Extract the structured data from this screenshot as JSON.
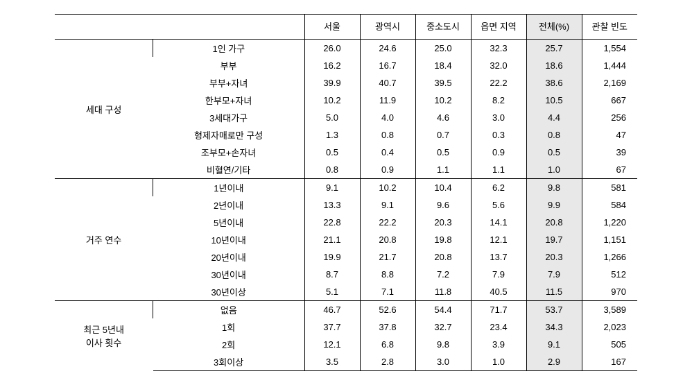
{
  "headers": {
    "blank": "",
    "seoul": "서울",
    "metro": "광역시",
    "smallcity": "중소도시",
    "rural": "읍면 지역",
    "total": "전체(%)",
    "freq": "관찰\n빈도"
  },
  "groups": [
    {
      "label": "세대 구성",
      "rows": [
        {
          "label": "1인 가구",
          "seoul": "26.0",
          "metro": "24.6",
          "smallcity": "25.0",
          "rural": "32.3",
          "total": "25.7",
          "freq": "1,554"
        },
        {
          "label": "부부",
          "seoul": "16.2",
          "metro": "16.7",
          "smallcity": "18.4",
          "rural": "32.0",
          "total": "18.6",
          "freq": "1,444"
        },
        {
          "label": "부부+자녀",
          "seoul": "39.9",
          "metro": "40.7",
          "smallcity": "39.5",
          "rural": "22.2",
          "total": "38.6",
          "freq": "2,169"
        },
        {
          "label": "한부모+자녀",
          "seoul": "10.2",
          "metro": "11.9",
          "smallcity": "10.2",
          "rural": "8.2",
          "total": "10.5",
          "freq": "667"
        },
        {
          "label": "3세대가구",
          "seoul": "5.0",
          "metro": "4.0",
          "smallcity": "4.6",
          "rural": "3.0",
          "total": "4.4",
          "freq": "256"
        },
        {
          "label": "형제자매로만 구성",
          "seoul": "1.3",
          "metro": "0.8",
          "smallcity": "0.7",
          "rural": "0.3",
          "total": "0.8",
          "freq": "47"
        },
        {
          "label": "조부모+손자녀",
          "seoul": "0.5",
          "metro": "0.4",
          "smallcity": "0.5",
          "rural": "0.9",
          "total": "0.5",
          "freq": "39"
        },
        {
          "label": "비혈연/기타",
          "seoul": "0.8",
          "metro": "0.9",
          "smallcity": "1.1",
          "rural": "1.1",
          "total": "1.0",
          "freq": "67"
        }
      ]
    },
    {
      "label": "거주 연수",
      "rows": [
        {
          "label": "1년이내",
          "seoul": "9.1",
          "metro": "10.2",
          "smallcity": "10.4",
          "rural": "6.2",
          "total": "9.8",
          "freq": "581"
        },
        {
          "label": "2년이내",
          "seoul": "13.3",
          "metro": "9.1",
          "smallcity": "9.6",
          "rural": "5.6",
          "total": "9.9",
          "freq": "584"
        },
        {
          "label": "5년이내",
          "seoul": "22.8",
          "metro": "22.2",
          "smallcity": "20.3",
          "rural": "14.1",
          "total": "20.8",
          "freq": "1,220"
        },
        {
          "label": "10년이내",
          "seoul": "21.1",
          "metro": "20.8",
          "smallcity": "19.8",
          "rural": "12.1",
          "total": "19.7",
          "freq": "1,151"
        },
        {
          "label": "20년이내",
          "seoul": "19.9",
          "metro": "21.7",
          "smallcity": "20.8",
          "rural": "13.7",
          "total": "20.3",
          "freq": "1,266"
        },
        {
          "label": "30년이내",
          "seoul": "8.7",
          "metro": "8.8",
          "smallcity": "7.2",
          "rural": "7.9",
          "total": "7.9",
          "freq": "512"
        },
        {
          "label": "30년이상",
          "seoul": "5.1",
          "metro": "7.1",
          "smallcity": "11.8",
          "rural": "40.5",
          "total": "11.5",
          "freq": "970"
        }
      ]
    },
    {
      "label": "최근 5년내\n이사 횟수",
      "rows": [
        {
          "label": "없음",
          "seoul": "46.7",
          "metro": "52.6",
          "smallcity": "54.4",
          "rural": "71.7",
          "total": "53.7",
          "freq": "3,589"
        },
        {
          "label": "1회",
          "seoul": "37.7",
          "metro": "37.8",
          "smallcity": "32.7",
          "rural": "23.4",
          "total": "34.3",
          "freq": "2,023"
        },
        {
          "label": "2회",
          "seoul": "12.1",
          "metro": "6.8",
          "smallcity": "9.8",
          "rural": "3.9",
          "total": "9.1",
          "freq": "505"
        },
        {
          "label": "3회이상",
          "seoul": "3.5",
          "metro": "2.8",
          "smallcity": "3.0",
          "rural": "1.0",
          "total": "2.9",
          "freq": "167"
        }
      ]
    }
  ]
}
